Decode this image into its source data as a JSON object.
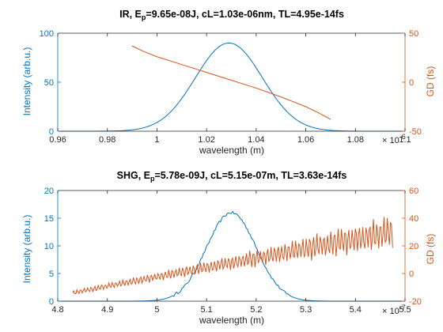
{
  "colors": {
    "left": "#0072BD",
    "right": "#D95319",
    "axis": "#262626"
  },
  "chart_data": [
    {
      "type": "line",
      "title_parts": {
        "prefix": "IR, E",
        "sub": "p",
        "suffix": "=9.65e-08J, cL=1.03e-06nm, TL=4.95e-14fs"
      },
      "xlabel": "wavelength (m)",
      "x_exponent_base": "× 10",
      "x_exponent_power": "-6",
      "xlim": [
        0.96,
        1.1
      ],
      "xticks": [
        "0.96",
        "0.98",
        "1",
        "1.02",
        "1.04",
        "1.06",
        "1.08",
        "1.1"
      ],
      "left_axis": {
        "label": "Intensity (arb.u.)",
        "ylim": [
          0,
          100
        ],
        "ticks": [
          "0",
          "50",
          "100"
        ]
      },
      "right_axis": {
        "label": "GD (fs)",
        "ylim": [
          -50,
          50
        ],
        "ticks": [
          "-50",
          "0",
          "50"
        ]
      },
      "series": [
        {
          "axis": "left",
          "shape": "gaussian",
          "peak": 90,
          "center": 1.029,
          "sigma": 0.0135,
          "x_range": [
            0.96,
            1.1
          ]
        },
        {
          "axis": "right",
          "shape": "polyline",
          "points": [
            [
              0.99,
              37
            ],
            [
              0.995,
              31
            ],
            [
              1.0,
              26
            ],
            [
              1.01,
              18
            ],
            [
              1.02,
              10
            ],
            [
              1.03,
              2
            ],
            [
              1.04,
              -6
            ],
            [
              1.05,
              -15
            ],
            [
              1.06,
              -25
            ],
            [
              1.065,
              -31
            ],
            [
              1.07,
              -38
            ]
          ]
        }
      ]
    },
    {
      "type": "line",
      "title_parts": {
        "prefix": "SHG, E",
        "sub": "p",
        "suffix": "=5.78e-09J, cL=5.15e-07m, TL=3.63e-14fs"
      },
      "xlabel": "wavelength (m)",
      "x_exponent_base": "× 10",
      "x_exponent_power": "-7",
      "xlim": [
        4.8,
        5.5
      ],
      "xticks": [
        "4.8",
        "4.9",
        "5",
        "5.1",
        "5.2",
        "5.3",
        "5.4",
        "5.5"
      ],
      "left_axis": {
        "label": "Intensity (arb.u.)",
        "ylim": [
          0,
          20
        ],
        "ticks": [
          "0",
          "5",
          "10",
          "15",
          "20"
        ]
      },
      "right_axis": {
        "label": "GD (fs)",
        "ylim": [
          -20,
          60
        ],
        "ticks": [
          "-20",
          "0",
          "20",
          "40",
          "60"
        ]
      },
      "series": [
        {
          "axis": "left",
          "shape": "gaussian",
          "peak": 16,
          "center": 5.15,
          "sigma": 0.05,
          "x_range": [
            4.8,
            5.5
          ],
          "noise_amp": 0.25
        },
        {
          "axis": "right",
          "shape": "noisy-trend",
          "x_range": [
            4.83,
            5.475
          ],
          "start": -14,
          "end": 30,
          "ripple_amp_start": 2,
          "ripple_amp_end": 14
        }
      ]
    }
  ]
}
